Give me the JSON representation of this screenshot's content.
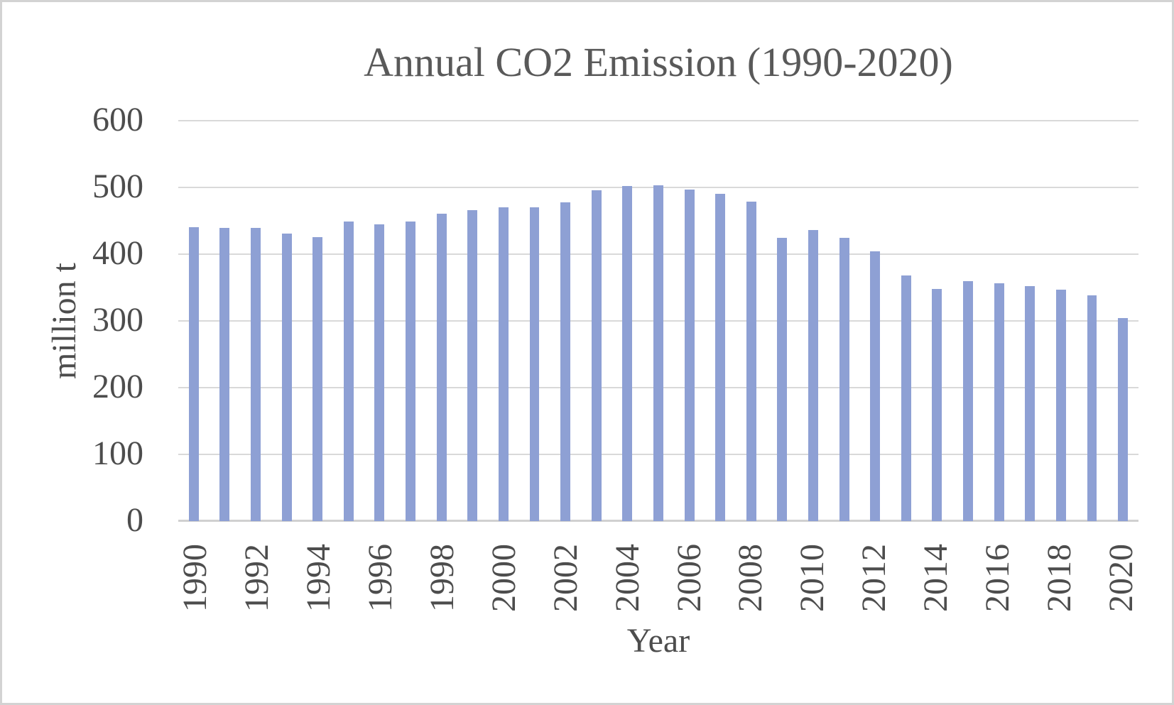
{
  "chart_data": {
    "type": "bar",
    "title": "Annual CO2 Emission (1990-2020)",
    "xlabel": "Year",
    "ylabel": "million t",
    "categories": [
      1990,
      1991,
      1992,
      1993,
      1994,
      1995,
      1996,
      1997,
      1998,
      1999,
      2000,
      2001,
      2002,
      2003,
      2004,
      2005,
      2006,
      2007,
      2008,
      2009,
      2010,
      2011,
      2012,
      2013,
      2014,
      2015,
      2016,
      2017,
      2018,
      2019,
      2020
    ],
    "values": [
      440,
      439,
      439,
      431,
      426,
      449,
      445,
      449,
      461,
      466,
      470,
      470,
      478,
      496,
      502,
      503,
      497,
      490,
      479,
      425,
      436,
      424,
      404,
      368,
      348,
      360,
      356,
      352,
      347,
      338,
      304
    ],
    "ylim": [
      0,
      600
    ],
    "yticks": [
      0,
      100,
      200,
      300,
      400,
      500,
      600
    ],
    "xtick_labels": [
      "1990",
      "1992",
      "1994",
      "1996",
      "1998",
      "2000",
      "2002",
      "2004",
      "2006",
      "2008",
      "2010",
      "2012",
      "2014",
      "2016",
      "2018",
      "2020"
    ],
    "xtick_step": 2,
    "grid": true,
    "legend": false,
    "colors": {
      "bar": "#8EA0D4",
      "gridline": "#D9D9D9",
      "axis_line": "#D0D0D0",
      "tick_text": "#4D4D4D",
      "title_text": "#595959",
      "background": "#FFFFFF",
      "frame_border": "#D3D3D3"
    }
  }
}
